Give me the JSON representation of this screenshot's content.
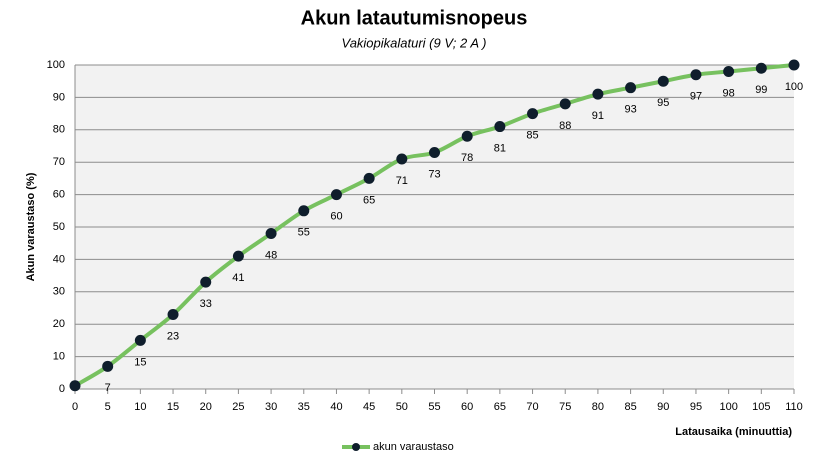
{
  "chart_data": {
    "type": "line",
    "title": "Akun latautumisnopeus",
    "subtitle": "Vakiopikalaturi (9 V; 2 A )",
    "x_label": "Latausaika (minuuttia)",
    "y_label": "Akun varaustaso (%)",
    "x": [
      0,
      5,
      10,
      15,
      20,
      25,
      30,
      35,
      40,
      45,
      50,
      55,
      60,
      65,
      70,
      75,
      80,
      85,
      90,
      95,
      100,
      105,
      110
    ],
    "series": [
      {
        "name": "akun varaustaso",
        "color": "#77c15f",
        "marker_color": "#0f1e2c",
        "values": [
          1,
          7,
          15,
          23,
          33,
          41,
          48,
          55,
          60,
          65,
          71,
          73,
          78,
          81,
          85,
          88,
          91,
          93,
          95,
          97,
          98,
          99,
          100
        ],
        "value_labels": [
          null,
          "7",
          "15",
          "23",
          "33",
          "41",
          "48",
          "55",
          "60",
          "65",
          "71",
          "73",
          "78",
          "81",
          "85",
          "88",
          "91",
          "93",
          "95",
          "97",
          "98",
          "99",
          "100"
        ]
      }
    ],
    "xlim": [
      0,
      110
    ],
    "xticks": [
      0,
      5,
      10,
      15,
      20,
      25,
      30,
      35,
      40,
      45,
      50,
      55,
      60,
      65,
      70,
      75,
      80,
      85,
      90,
      95,
      100,
      105,
      110
    ],
    "ylim": [
      0,
      100
    ],
    "yticks": [
      0,
      10,
      20,
      30,
      40,
      50,
      60,
      70,
      80,
      90,
      100
    ],
    "grid": true,
    "smooth": true,
    "legend": "bottom"
  }
}
